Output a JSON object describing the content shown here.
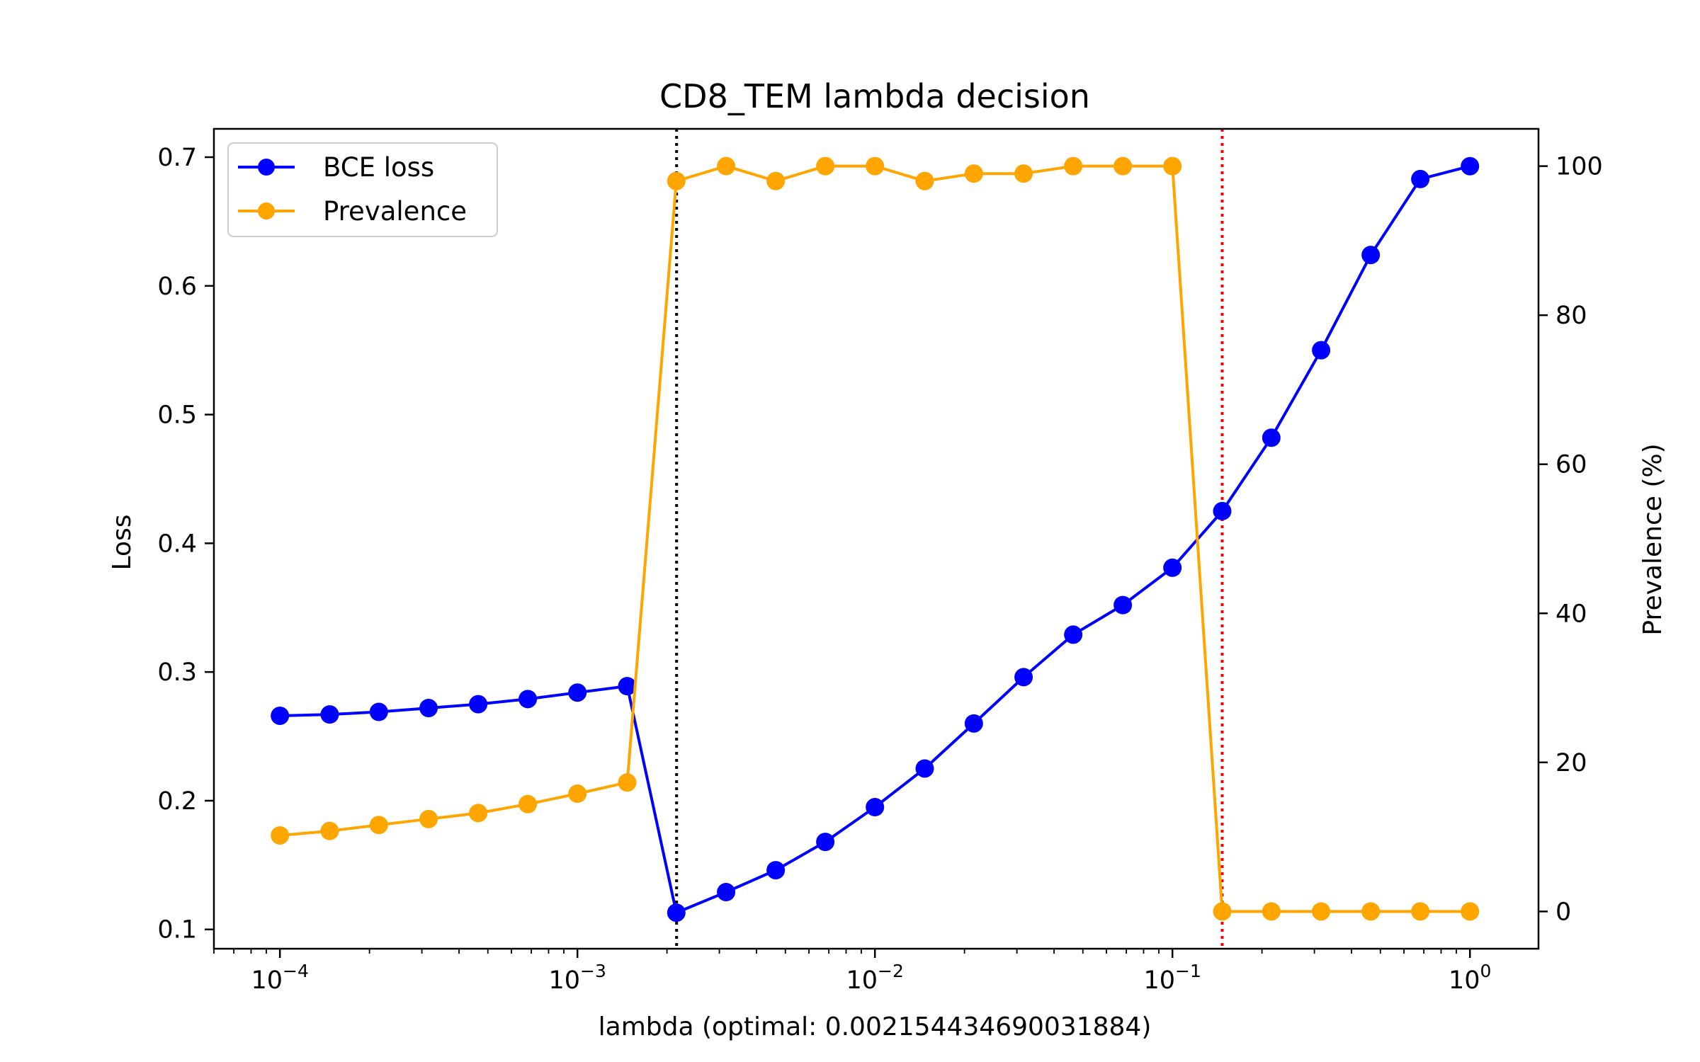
{
  "chart_data": {
    "type": "line",
    "title": "CD8_TEM lambda decision",
    "xlabel": "lambda (optimal: 0.002154434690031884)",
    "ylabel_left": "Loss",
    "ylabel_right": "Prevalence (%)",
    "xscale": "log",
    "xlim": [
      6e-05,
      1.7
    ],
    "ylim_left": [
      0.085,
      0.722
    ],
    "ylim_right": [
      -5,
      105
    ],
    "x_ticks": [
      {
        "value": 0.0001,
        "base": "10",
        "exp": "−4"
      },
      {
        "value": 0.001,
        "base": "10",
        "exp": "−3"
      },
      {
        "value": 0.01,
        "base": "10",
        "exp": "−2"
      },
      {
        "value": 0.1,
        "base": "10",
        "exp": "−1"
      },
      {
        "value": 1,
        "base": "10",
        "exp": "0"
      }
    ],
    "y_ticks_left": [
      "0.1",
      "0.2",
      "0.3",
      "0.4",
      "0.5",
      "0.6",
      "0.7"
    ],
    "y_ticks_right": [
      "0",
      "20",
      "40",
      "60",
      "80",
      "100"
    ],
    "x": [
      0.0001,
      0.000147,
      0.000215,
      0.000316,
      0.000464,
      0.000681,
      0.001,
      0.00147,
      0.00215,
      0.00316,
      0.00464,
      0.00681,
      0.01,
      0.0147,
      0.0215,
      0.0316,
      0.0464,
      0.0681,
      0.1,
      0.147,
      0.215,
      0.316,
      0.464,
      0.681,
      1.0
    ],
    "series": [
      {
        "name": "BCE loss",
        "axis": "left",
        "color": "#0000ff",
        "values": [
          0.266,
          0.267,
          0.269,
          0.272,
          0.275,
          0.279,
          0.284,
          0.289,
          0.113,
          0.129,
          0.146,
          0.168,
          0.195,
          0.225,
          0.26,
          0.296,
          0.329,
          0.352,
          0.381,
          0.425,
          0.482,
          0.55,
          0.624,
          0.683,
          0.693
        ]
      },
      {
        "name": "Prevalence",
        "axis": "right",
        "color": "#ffa500",
        "values": [
          10.2,
          10.8,
          11.6,
          12.4,
          13.2,
          14.4,
          15.8,
          17.3,
          98.0,
          100.0,
          98.0,
          100.0,
          100.0,
          98.0,
          99.0,
          99.0,
          100.0,
          100.0,
          100.0,
          0,
          0,
          0,
          0,
          0,
          0
        ]
      }
    ],
    "vlines": [
      {
        "x": 0.002154434690031884,
        "color": "#000000",
        "style": "dotted"
      },
      {
        "x": 0.147,
        "color": "#ff0000",
        "style": "dotted"
      }
    ],
    "legend": "top-left",
    "grid": false
  }
}
